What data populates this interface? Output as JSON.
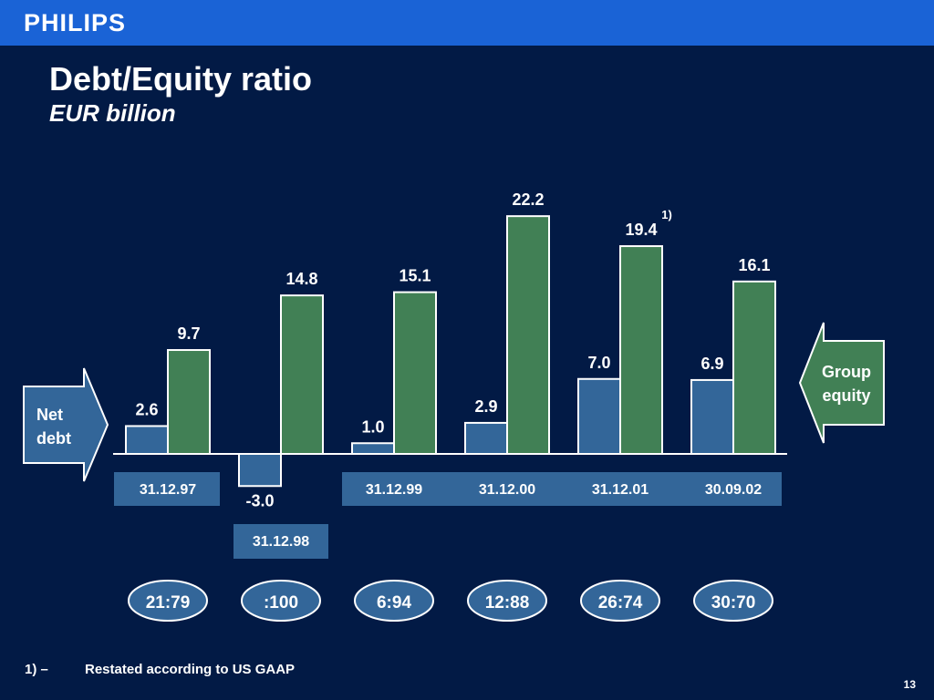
{
  "header": {
    "brand": "PHILIPS"
  },
  "title": "Debt/Equity ratio",
  "subtitle": "EUR billion",
  "colors": {
    "background": "#021a45",
    "header_bar": "#1a63d6",
    "net_debt": "#336699",
    "group_equity": "#418055",
    "outline": "#ffffff"
  },
  "chart_data": {
    "type": "bar",
    "categories": [
      "31.12.97",
      "31.12.98",
      "31.12.99",
      "31.12.00",
      "31.12.01",
      "30.09.02"
    ],
    "series": [
      {
        "name": "Net debt",
        "values": [
          2.6,
          -3.0,
          1.0,
          2.9,
          7.0,
          6.9
        ]
      },
      {
        "name": "Group equity",
        "values": [
          9.7,
          14.8,
          15.1,
          22.2,
          19.4,
          16.1
        ]
      }
    ],
    "value_labels": {
      "net_debt": [
        "2.6",
        "-3.0",
        "1.0",
        "2.9",
        "7.0",
        "6.9"
      ],
      "group_equity": [
        "9.7",
        "14.8",
        "15.1",
        "22.2",
        "19.4",
        "16.1"
      ]
    },
    "annotations": [
      {
        "series": "Group equity",
        "category": "31.12.01",
        "text": "1)"
      }
    ],
    "ratios": [
      "21:79",
      ":100",
      "6:94",
      "12:88",
      "26:74",
      "30:70"
    ],
    "legend_left": [
      "Net",
      "debt"
    ],
    "legend_right": [
      "Group",
      "equity"
    ]
  },
  "footnote": {
    "mark": "1) –",
    "text": "Restated according to US GAAP"
  },
  "page_number": "13"
}
